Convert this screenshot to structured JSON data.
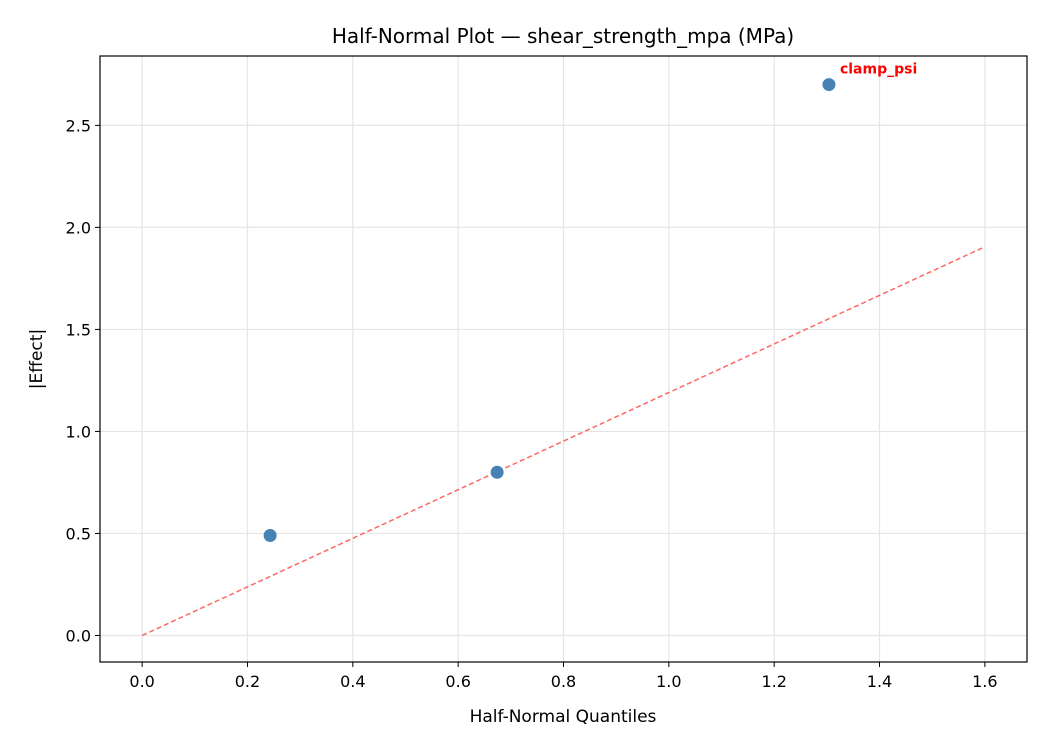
{
  "chart_data": {
    "type": "scatter",
    "title": "Half-Normal Plot — shear_strength_mpa (MPa)",
    "xlabel": "Half-Normal Quantiles",
    "ylabel": "|Effect|",
    "xlim": [
      -0.08,
      1.68
    ],
    "ylim": [
      -0.13,
      2.84
    ],
    "xticks": [
      0.0,
      0.2,
      0.4,
      0.6,
      0.8,
      1.0,
      1.2,
      1.4,
      1.6
    ],
    "xtick_labels": [
      "0.0",
      "0.2",
      "0.4",
      "0.6",
      "0.8",
      "1.0",
      "1.2",
      "1.4",
      "1.6"
    ],
    "yticks": [
      0.0,
      0.5,
      1.0,
      1.5,
      2.0,
      2.5
    ],
    "ytick_labels": [
      "0.0",
      "0.5",
      "1.0",
      "1.5",
      "2.0",
      "2.5"
    ],
    "grid": true,
    "points": [
      {
        "x": 0.243,
        "y": 0.49,
        "label": ""
      },
      {
        "x": 0.674,
        "y": 0.8,
        "label": ""
      },
      {
        "x": 1.304,
        "y": 2.7,
        "label": "clamp_psi"
      }
    ],
    "reference_line": {
      "x": [
        0.0,
        1.6
      ],
      "y": [
        0.0,
        1.905
      ],
      "style": "dashed"
    },
    "colors": {
      "points": "#4682b4",
      "reference_line": "#ff6666",
      "annotation": "#ff0000",
      "grid": "#e5e5e5"
    }
  }
}
